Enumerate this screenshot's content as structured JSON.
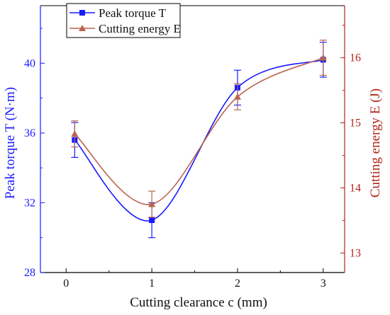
{
  "chart_data": {
    "type": "line",
    "x": [
      0.1,
      1,
      2,
      3
    ],
    "xlabel": "Cutting clearance c (mm)",
    "xticks": [
      0,
      1,
      2,
      3
    ],
    "xlim": [
      -0.3,
      3.25
    ],
    "y_left": {
      "label": "Peak torque T (N·m)",
      "ticks": [
        28,
        32,
        36,
        40
      ],
      "lim": [
        28,
        43.3
      ],
      "color": "#1a1aff"
    },
    "y_right": {
      "label": "Cutting energy E (J)",
      "ticks": [
        13,
        14,
        15,
        16
      ],
      "lim": [
        12.7,
        16.8
      ],
      "color": "#b02418"
    },
    "series": [
      {
        "name": "Peak torque T",
        "axis": "left",
        "marker": "square",
        "color": "#1a1aff",
        "values": [
          35.6,
          31.0,
          38.6,
          40.2
        ],
        "errors": [
          1.0,
          1.0,
          1.0,
          1.0
        ]
      },
      {
        "name": "Cutting energy E",
        "axis": "right",
        "marker": "triangle",
        "color": "#b8644f",
        "values": [
          14.83,
          13.75,
          15.4,
          16.0
        ],
        "errors": [
          0.2,
          0.2,
          0.2,
          0.27
        ]
      }
    ],
    "legend_position": "top-left",
    "grid": false
  }
}
